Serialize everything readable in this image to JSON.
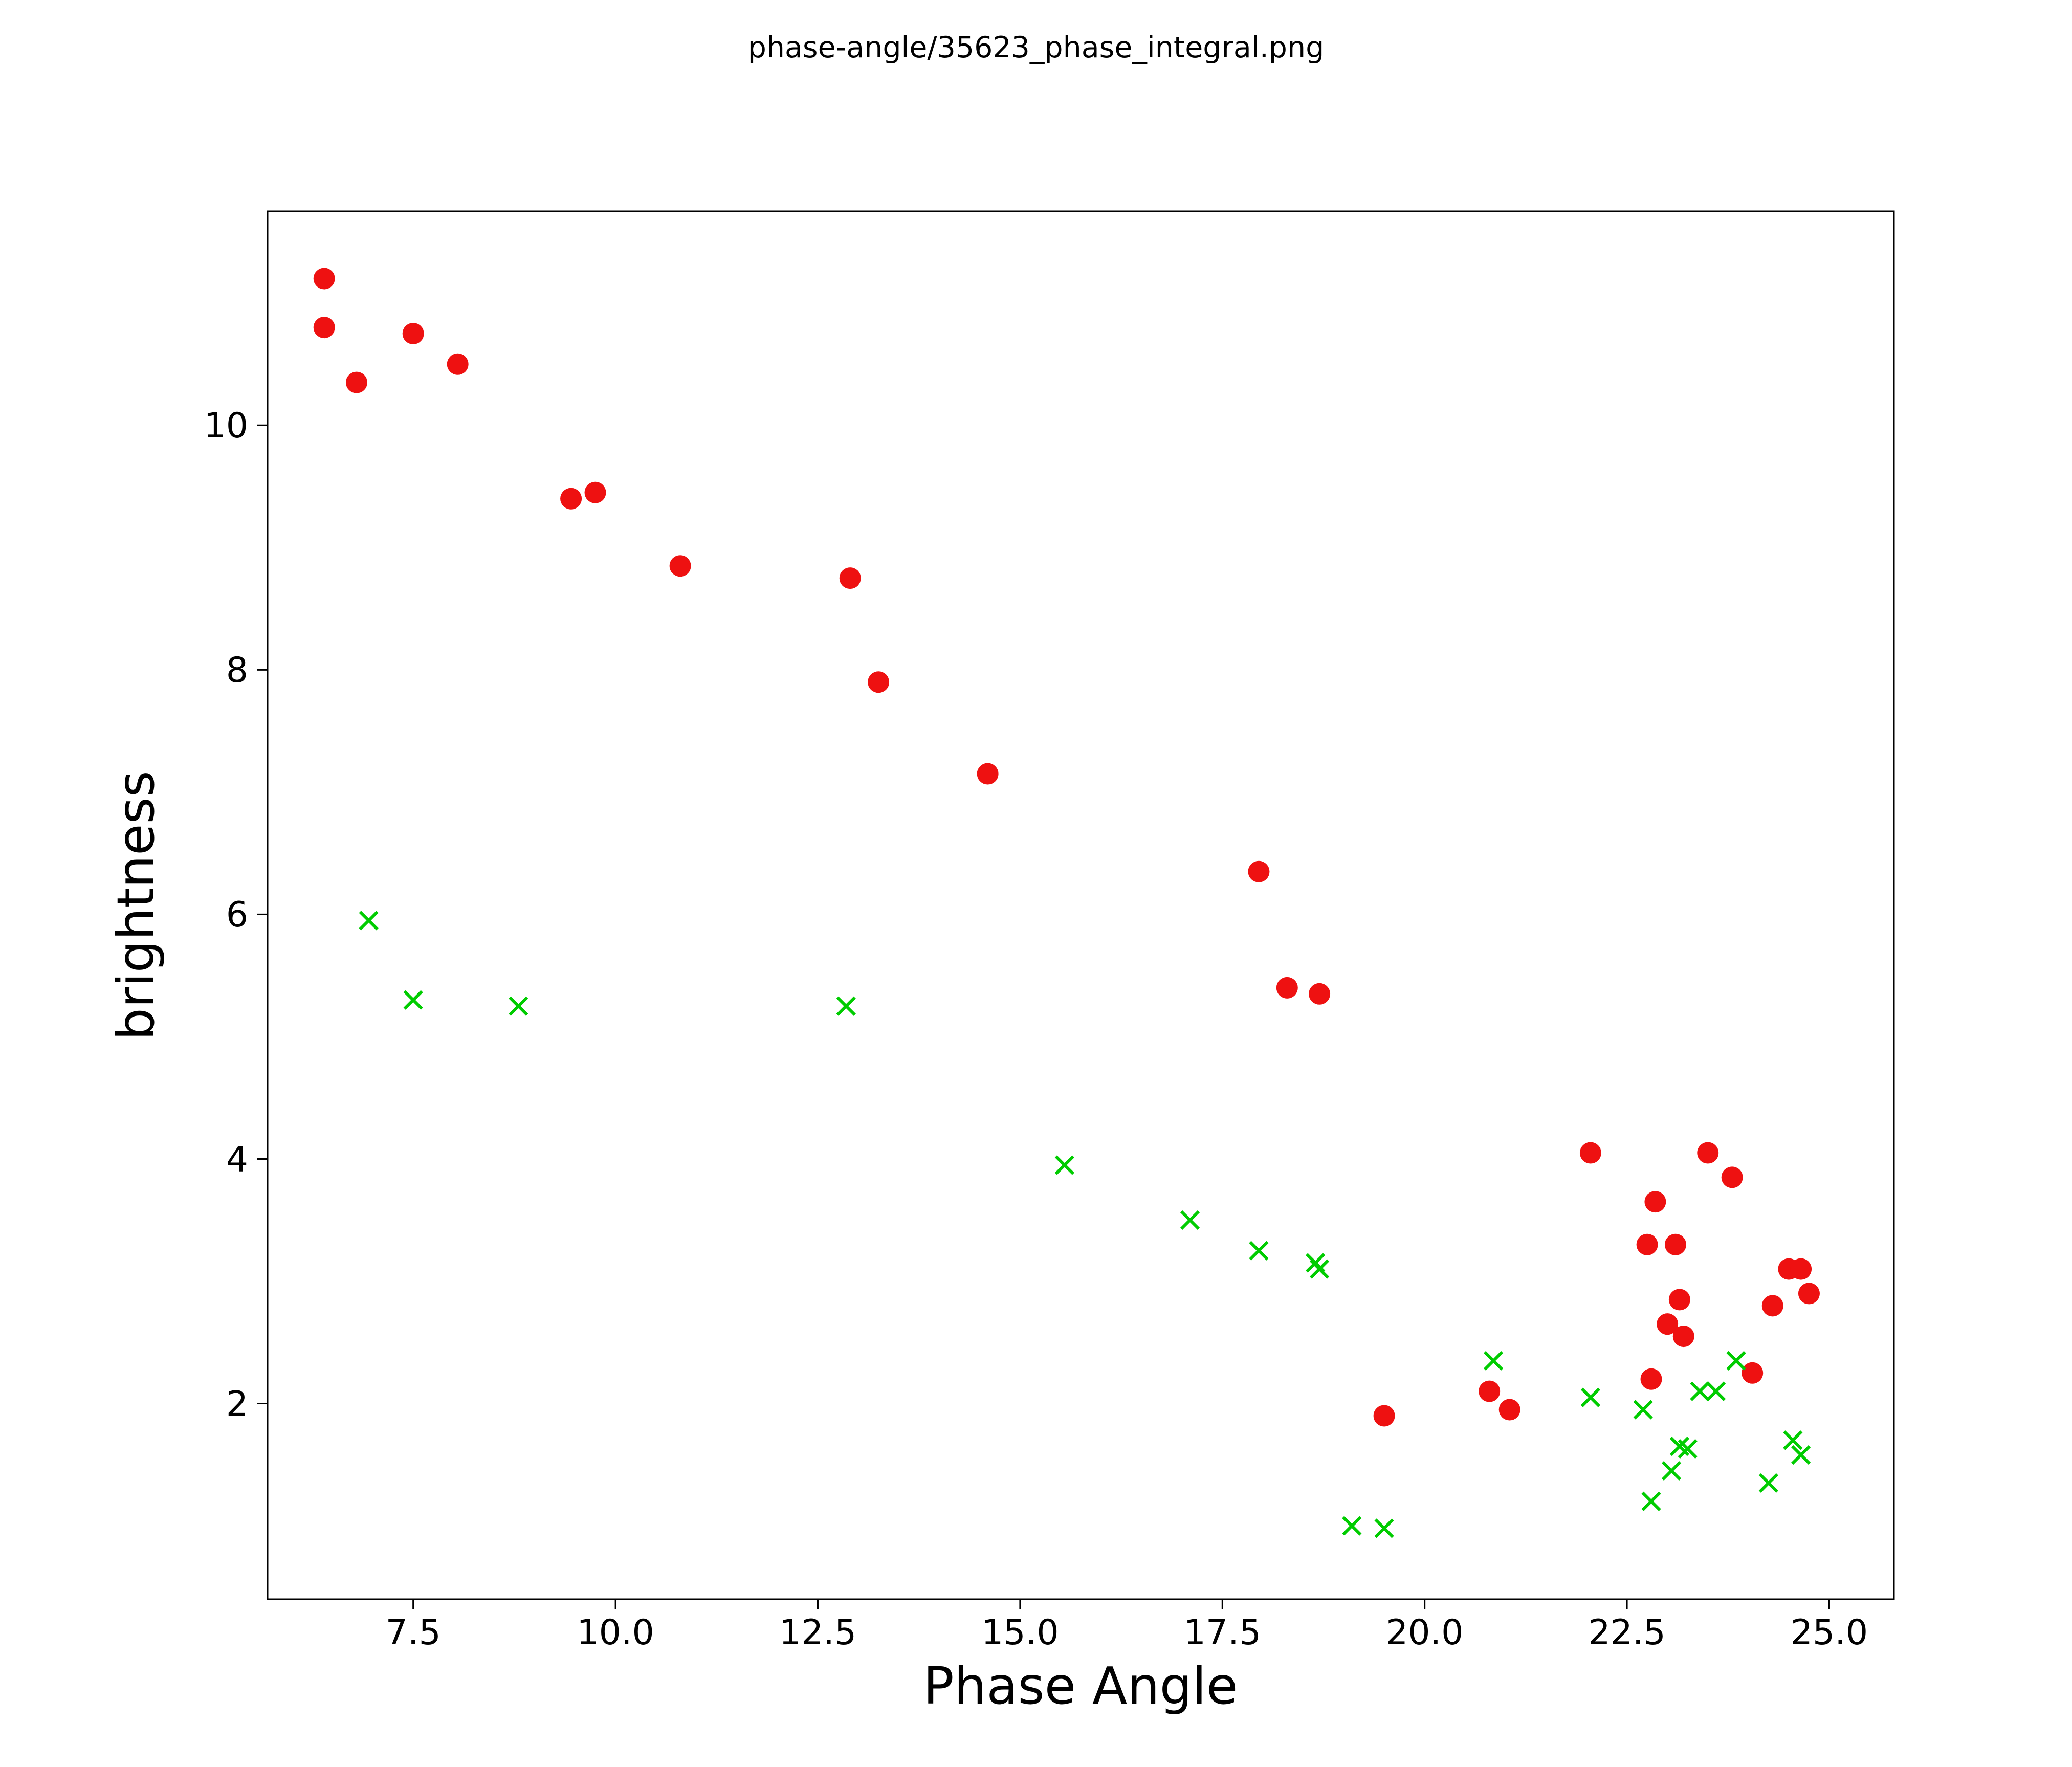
{
  "page": {
    "title": "phase-angle/35623_phase_integral.png"
  },
  "chart_data": {
    "type": "scatter",
    "title": "phase-angle/35623_phase_integral.png",
    "xlabel": "Phase Angle",
    "ylabel": "brightness",
    "xlim": [
      5.7,
      25.8
    ],
    "ylim": [
      0.4,
      11.75
    ],
    "x_ticks": [
      7.5,
      10.0,
      12.5,
      15.0,
      17.5,
      20.0,
      22.5,
      25.0
    ],
    "x_tick_labels": [
      "7.5",
      "10.0",
      "12.5",
      "15.0",
      "17.5",
      "20.0",
      "22.5",
      "25.0"
    ],
    "y_ticks": [
      2,
      4,
      6,
      8,
      10
    ],
    "y_tick_labels": [
      "2",
      "4",
      "6",
      "8",
      "10"
    ],
    "grid": false,
    "legend": null,
    "series": [
      {
        "name": "red-circles",
        "marker": "circle",
        "color": "#ee1111",
        "points": [
          [
            6.4,
            11.2
          ],
          [
            6.4,
            10.8
          ],
          [
            6.8,
            10.35
          ],
          [
            7.5,
            10.75
          ],
          [
            8.05,
            10.5
          ],
          [
            9.45,
            9.4
          ],
          [
            9.75,
            9.45
          ],
          [
            10.8,
            8.85
          ],
          [
            12.9,
            8.75
          ],
          [
            13.25,
            7.9
          ],
          [
            14.6,
            7.15
          ],
          [
            17.95,
            6.35
          ],
          [
            18.3,
            5.4
          ],
          [
            18.7,
            5.35
          ],
          [
            19.5,
            1.9
          ],
          [
            20.8,
            2.1
          ],
          [
            21.05,
            1.95
          ],
          [
            22.05,
            4.05
          ],
          [
            22.85,
            3.65
          ],
          [
            22.75,
            3.3
          ],
          [
            23.1,
            3.3
          ],
          [
            23.15,
            2.85
          ],
          [
            23.0,
            2.65
          ],
          [
            23.2,
            2.55
          ],
          [
            22.8,
            2.2
          ],
          [
            23.5,
            4.05
          ],
          [
            23.8,
            3.85
          ],
          [
            24.05,
            2.25
          ],
          [
            24.3,
            2.8
          ],
          [
            24.5,
            3.1
          ],
          [
            24.65,
            3.1
          ],
          [
            24.75,
            2.9
          ]
        ]
      },
      {
        "name": "green-crosses",
        "marker": "x",
        "color": "#00cc00",
        "points": [
          [
            6.95,
            5.95
          ],
          [
            7.5,
            5.3
          ],
          [
            8.8,
            5.25
          ],
          [
            12.85,
            5.25
          ],
          [
            15.55,
            3.95
          ],
          [
            17.1,
            3.5
          ],
          [
            17.95,
            3.25
          ],
          [
            18.65,
            3.15
          ],
          [
            18.7,
            3.1
          ],
          [
            19.1,
            1.0
          ],
          [
            19.5,
            0.98
          ],
          [
            20.85,
            2.35
          ],
          [
            22.05,
            2.05
          ],
          [
            22.7,
            1.95
          ],
          [
            22.8,
            1.2
          ],
          [
            23.05,
            1.45
          ],
          [
            23.15,
            1.65
          ],
          [
            23.25,
            1.63
          ],
          [
            23.4,
            2.1
          ],
          [
            23.6,
            2.1
          ],
          [
            23.85,
            2.35
          ],
          [
            24.25,
            1.35
          ],
          [
            24.55,
            1.7
          ],
          [
            24.65,
            1.58
          ]
        ]
      }
    ]
  }
}
